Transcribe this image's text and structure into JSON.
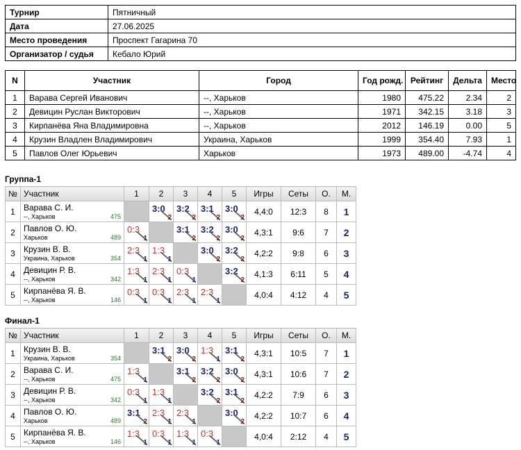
{
  "info": {
    "rows": [
      [
        "Турнир",
        "Пятничный"
      ],
      [
        "Дата",
        "27.06.2025"
      ],
      [
        "Место проведения",
        "Проспект Гагарина 70"
      ],
      [
        "Организатор / судья",
        "Кебало Юрий"
      ]
    ]
  },
  "participants": {
    "header": [
      "N",
      "Участник",
      "Город",
      "Год рожд.",
      "Рейтинг",
      "Дельта",
      "Место"
    ],
    "rows": [
      [
        "1",
        "Варава Сергей Иванович",
        "--, Харьков",
        "1980",
        "475.22",
        "2.34",
        "2"
      ],
      [
        "2",
        "Девицин Руслан Викторович",
        "--, Харьков",
        "1971",
        "342.15",
        "3.18",
        "3"
      ],
      [
        "3",
        "Кирпанёва Яна Владимировна",
        "--, Харьков",
        "2012",
        "146.19",
        "0.00",
        "5"
      ],
      [
        "4",
        "Крузин Владлен Владимирович",
        "Украина, Харьков",
        "1999",
        "354.40",
        "7.93",
        "1"
      ],
      [
        "5",
        "Павлов Олег Юрьевич",
        "Харьков",
        "1973",
        "489.00",
        "-4.74",
        "4"
      ]
    ]
  },
  "groups": [
    {
      "title": "Группа-1",
      "header": [
        "№",
        "Участник",
        "1",
        "2",
        "3",
        "4",
        "5",
        "Игры",
        "Сеты",
        "О.",
        "М."
      ],
      "rows": [
        {
          "n": "1",
          "name": "Варава С. И.",
          "city": "--, Харьков",
          "rating": "475",
          "results": [
            null,
            {
              "score": "3:0",
              "points": "2"
            },
            {
              "score": "3:2",
              "points": "2"
            },
            {
              "score": "3:1",
              "points": "2"
            },
            {
              "score": "3:0",
              "points": "2"
            }
          ],
          "games": "4,4:0",
          "sets": "12:3",
          "points": "8",
          "place": "1"
        },
        {
          "n": "2",
          "name": "Павлов О. Ю.",
          "city": "Харьков",
          "rating": "489",
          "results": [
            {
              "score": "0:3",
              "points": "1"
            },
            null,
            {
              "score": "3:1",
              "points": "2"
            },
            {
              "score": "3:2",
              "points": "2"
            },
            {
              "score": "3:0",
              "points": "2"
            }
          ],
          "games": "4,3:1",
          "sets": "9:6",
          "points": "7",
          "place": "2"
        },
        {
          "n": "3",
          "name": "Крузин В. В.",
          "city": "Украина, Харьков",
          "rating": "354",
          "results": [
            {
              "score": "2:3",
              "points": "1"
            },
            {
              "score": "1:3",
              "points": "1"
            },
            null,
            {
              "score": "3:0",
              "points": "2"
            },
            {
              "score": "3:2",
              "points": "2"
            }
          ],
          "games": "4,2:2",
          "sets": "9:8",
          "points": "6",
          "place": "3"
        },
        {
          "n": "4",
          "name": "Девицин Р. В.",
          "city": "--, Харьков",
          "rating": "342",
          "results": [
            {
              "score": "1:3",
              "points": "1"
            },
            {
              "score": "2:3",
              "points": "1"
            },
            {
              "score": "0:3",
              "points": "1"
            },
            null,
            {
              "score": "3:2",
              "points": "2"
            }
          ],
          "games": "4,1:3",
          "sets": "6:11",
          "points": "5",
          "place": "4"
        },
        {
          "n": "5",
          "name": "Кирпанёва Я. В.",
          "city": "--, Харьков",
          "rating": "146",
          "results": [
            {
              "score": "0:3",
              "points": "1"
            },
            {
              "score": "0:3",
              "points": "1"
            },
            {
              "score": "2:3",
              "points": "1"
            },
            {
              "score": "2:3",
              "points": "1"
            },
            null
          ],
          "games": "4,0:4",
          "sets": "4:12",
          "points": "4",
          "place": "5"
        }
      ]
    },
    {
      "title": "Финал-1",
      "header": [
        "№",
        "Участник",
        "1",
        "2",
        "3",
        "4",
        "5",
        "Игры",
        "Сеты",
        "О.",
        "М."
      ],
      "rows": [
        {
          "n": "1",
          "name": "Крузин В. В.",
          "city": "Украина, Харьков",
          "rating": "354",
          "results": [
            null,
            {
              "score": "3:1",
              "points": "2"
            },
            {
              "score": "3:0",
              "points": "2"
            },
            {
              "score": "1:3",
              "points": "1"
            },
            {
              "score": "3:1",
              "points": "2"
            }
          ],
          "games": "4,3:1",
          "sets": "10:5",
          "points": "7",
          "place": "1"
        },
        {
          "n": "2",
          "name": "Варава С. И.",
          "city": "--, Харьков",
          "rating": "475",
          "results": [
            {
              "score": "1:3",
              "points": "1"
            },
            null,
            {
              "score": "3:1",
              "points": "2"
            },
            {
              "score": "3:2",
              "points": "2"
            },
            {
              "score": "3:0",
              "points": "2"
            }
          ],
          "games": "4,3:1",
          "sets": "10:6",
          "points": "7",
          "place": "2"
        },
        {
          "n": "3",
          "name": "Девицин Р. В.",
          "city": "--, Харьков",
          "rating": "342",
          "results": [
            {
              "score": "0:3",
              "points": "1"
            },
            {
              "score": "1:3",
              "points": "1"
            },
            null,
            {
              "score": "3:2",
              "points": "2"
            },
            {
              "score": "3:1",
              "points": "2"
            }
          ],
          "games": "4,2:2",
          "sets": "7:9",
          "points": "6",
          "place": "3"
        },
        {
          "n": "4",
          "name": "Павлов О. Ю.",
          "city": "Харьков",
          "rating": "489",
          "results": [
            {
              "score": "3:1",
              "points": "2"
            },
            {
              "score": "2:3",
              "points": "1"
            },
            {
              "score": "2:3",
              "points": "1"
            },
            null,
            {
              "score": "3:0",
              "points": "2"
            }
          ],
          "games": "4,2:2",
          "sets": "10:7",
          "points": "6",
          "place": "4"
        },
        {
          "n": "5",
          "name": "Кирпанёва Я. В.",
          "city": "--, Харьков",
          "rating": "146",
          "results": [
            {
              "score": "1:3",
              "points": "1"
            },
            {
              "score": "0:3",
              "points": "1"
            },
            {
              "score": "1:3",
              "points": "1"
            },
            {
              "score": "0:3",
              "points": "1"
            },
            null
          ],
          "games": "4,0:4",
          "sets": "2:12",
          "points": "4",
          "place": "5"
        }
      ]
    }
  ]
}
